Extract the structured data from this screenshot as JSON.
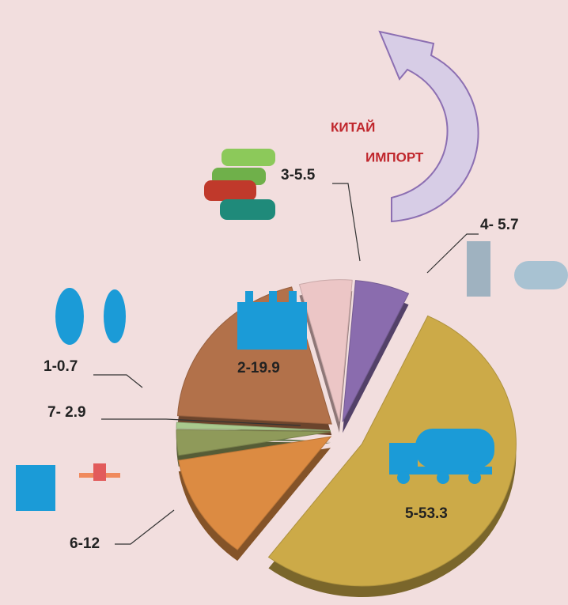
{
  "chart_data": {
    "type": "pie",
    "values": [
      5.5,
      5.7,
      53.3,
      12,
      2.9,
      0.7,
      19.9
    ],
    "value_labels": [
      "3-5.5",
      "4- 5.7",
      "5-53.3",
      "6-12",
      "7- 2.9",
      "1-0.7",
      "2-19.9"
    ],
    "colors": [
      "#ecc6c6",
      "#8a6cae",
      "#ccaa48",
      "#dc8b42",
      "#8f9a5a",
      "#a9c98e",
      "#b2714a"
    ],
    "annotations": [
      "КИТАЙ",
      "ИМПОРТ"
    ]
  }
}
